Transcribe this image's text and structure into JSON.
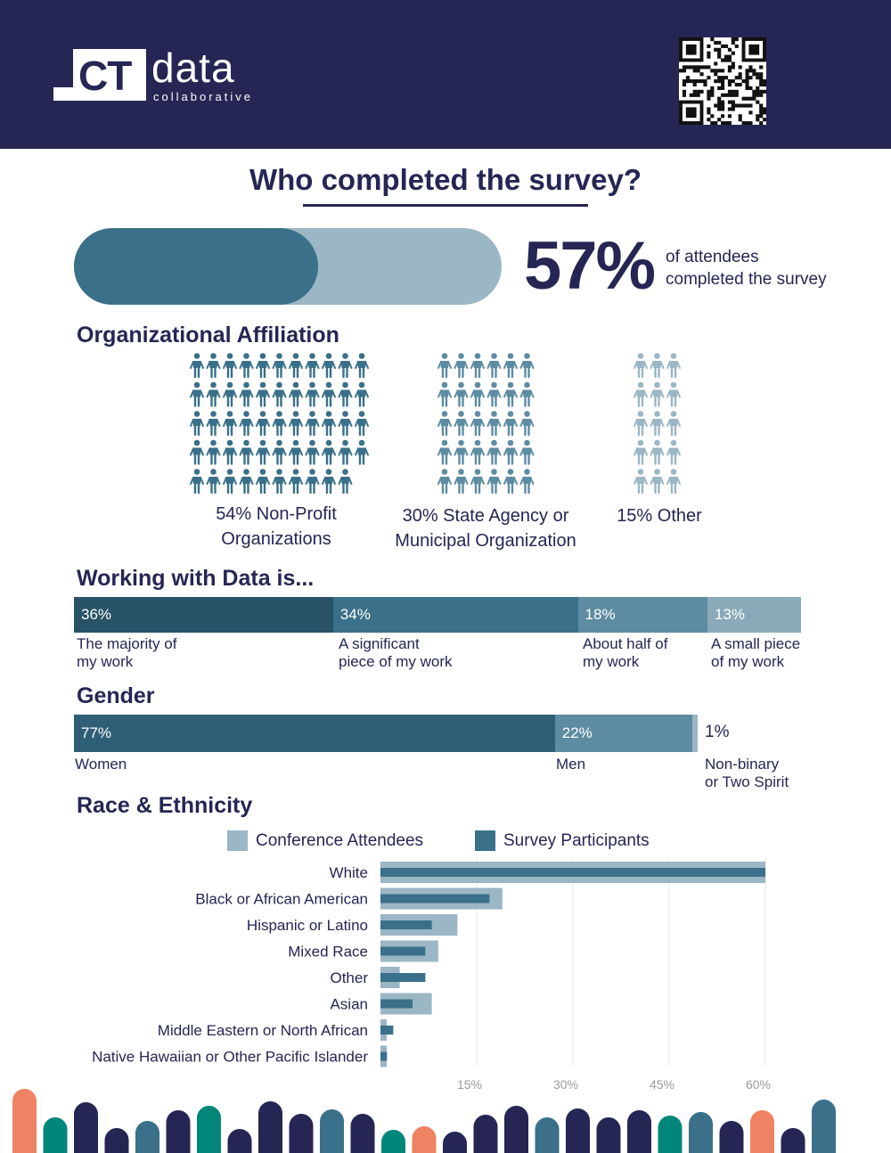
{
  "header": {
    "logo_ct": "CT",
    "logo_data": "data",
    "logo_sub": "collaborative",
    "qr_icon": "qr-code-icon",
    "background": "#252654"
  },
  "title": "Who completed the survey?",
  "completion": {
    "percent_label": "57%",
    "fraction": 0.57,
    "caption_line1": "of attendees",
    "caption_line2": "completed the survey"
  },
  "affiliation": {
    "heading": "Organizational Affiliation",
    "groups": [
      {
        "line1": "54% Non-Profit",
        "line2": "Organizations",
        "count": 54,
        "cols": 11,
        "color": "#3a7089"
      },
      {
        "line1": "30% State Agency or",
        "line2": "Municipal Organization",
        "count": 30,
        "cols": 6,
        "color": "#5d8ca3"
      },
      {
        "line1": "15% Other",
        "line2": "",
        "count": 15,
        "cols": 3,
        "color": "#9bb6c4"
      }
    ],
    "person_icon": "person-icon"
  },
  "working": {
    "heading": "Working with Data is...",
    "segments": [
      {
        "value": 36,
        "label": "36%",
        "line1": "The majority of",
        "line2": "my work",
        "color": "#285366"
      },
      {
        "value": 34,
        "label": "34%",
        "line1": "A significant",
        "line2": "piece of my work",
        "color": "#3a7089"
      },
      {
        "value": 18,
        "label": "18%",
        "line1": "About half of",
        "line2": "my work",
        "color": "#5d8ca3"
      },
      {
        "value": 13,
        "label": "13%",
        "line1": "A small piece",
        "line2": "of my work",
        "color": "#8aa9b9"
      }
    ]
  },
  "gender": {
    "heading": "Gender",
    "segments": [
      {
        "value": 77,
        "label": "77%",
        "line1": "Women",
        "line2": "",
        "color": "#2f5f76"
      },
      {
        "value": 22,
        "label": "22%",
        "line1": "Men",
        "line2": "",
        "color": "#5d8ca3"
      },
      {
        "value": 1,
        "label": "1%",
        "line1": "Non-binary",
        "line2": "or Two Spirit",
        "color": "#9bb6c4"
      }
    ]
  },
  "race": {
    "heading": "Race & Ethnicity",
    "legend": {
      "attendees": "Conference Attendees",
      "participants": "Survey Participants",
      "attendees_color": "#9bb6c4",
      "participants_color": "#3a7089"
    }
  },
  "chart_data": {
    "type": "bar",
    "orientation": "horizontal",
    "categories": [
      "White",
      "Black or African American",
      "Hispanic or Latino",
      "Mixed Race",
      "Other",
      "Asian",
      "Middle Eastern or North African",
      "Native Hawaiian or Other Pacific Islander"
    ],
    "series": [
      {
        "name": "Conference Attendees",
        "values": [
          60,
          19,
          12,
          9,
          3,
          8,
          1,
          1
        ]
      },
      {
        "name": "Survey Participants",
        "values": [
          60,
          17,
          8,
          7,
          7,
          5,
          2,
          1
        ]
      }
    ],
    "xlim": [
      0,
      60
    ],
    "xticks": [
      "15%",
      "30%",
      "45%",
      "60%"
    ],
    "xtick_values": [
      15,
      30,
      45,
      60
    ],
    "grid": true,
    "legend": "top"
  },
  "footer": {
    "decor_colors": [
      "#ef8262",
      "#00877a",
      "#252654",
      "#3a7089"
    ]
  }
}
